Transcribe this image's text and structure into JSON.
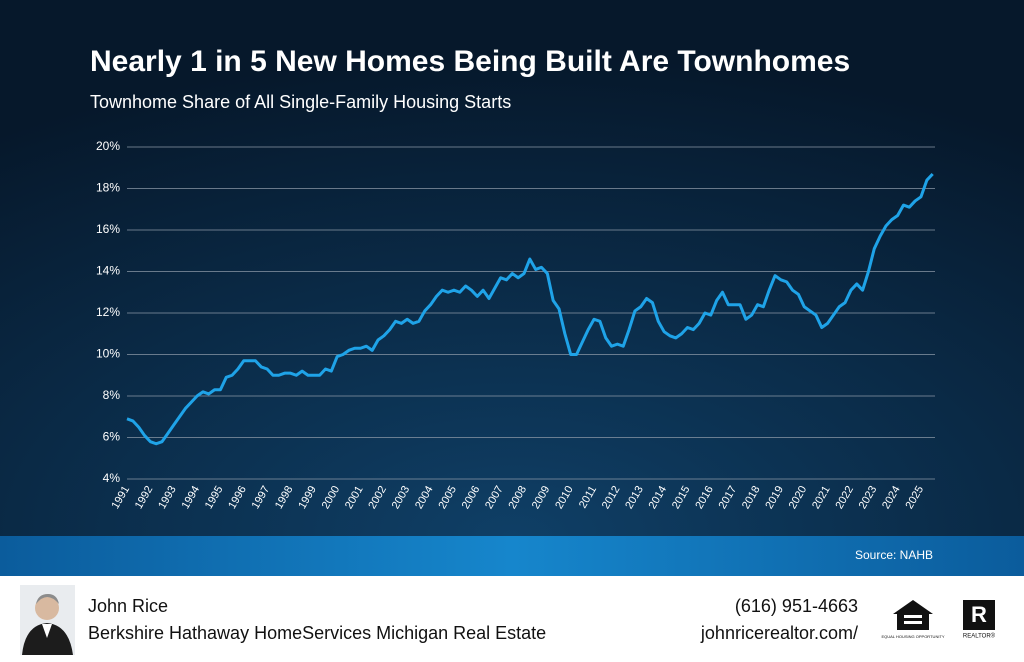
{
  "chart_data": {
    "type": "line",
    "title": "Nearly 1 in 5 New Homes Being Built Are Townhomes",
    "subtitle": "Townhome Share of All Single-Family Housing Starts",
    "source": "Source: NAHB",
    "x": [
      1991,
      1991.25,
      1991.5,
      1991.75,
      1992,
      1992.25,
      1992.5,
      1992.75,
      1993,
      1993.25,
      1993.5,
      1993.75,
      1994,
      1994.25,
      1994.5,
      1994.75,
      1995,
      1995.25,
      1995.5,
      1995.75,
      1996,
      1996.25,
      1996.5,
      1996.75,
      1997,
      1997.25,
      1997.5,
      1997.75,
      1998,
      1998.25,
      1998.5,
      1998.75,
      1999,
      1999.25,
      1999.5,
      1999.75,
      2000,
      2000.25,
      2000.5,
      2000.75,
      2001,
      2001.25,
      2001.5,
      2001.75,
      2002,
      2002.25,
      2002.5,
      2002.75,
      2003,
      2003.25,
      2003.5,
      2003.75,
      2004,
      2004.25,
      2004.5,
      2004.75,
      2005,
      2005.25,
      2005.5,
      2005.75,
      2006,
      2006.25,
      2006.5,
      2006.75,
      2007,
      2007.25,
      2007.5,
      2007.75,
      2008,
      2008.25,
      2008.5,
      2008.75,
      2009,
      2009.25,
      2009.5,
      2009.75,
      2010,
      2010.25,
      2010.5,
      2010.75,
      2011,
      2011.25,
      2011.5,
      2011.75,
      2012,
      2012.25,
      2012.5,
      2012.75,
      2013,
      2013.25,
      2013.5,
      2013.75,
      2014,
      2014.25,
      2014.5,
      2014.75,
      2015,
      2015.25,
      2015.5,
      2015.75,
      2016,
      2016.25,
      2016.5,
      2016.75,
      2017,
      2017.25,
      2017.5,
      2017.75,
      2018,
      2018.25,
      2018.5,
      2018.75,
      2019,
      2019.25,
      2019.5,
      2019.75,
      2020,
      2020.25,
      2020.5,
      2020.75,
      2021,
      2021.25,
      2021.5,
      2021.75,
      2022,
      2022.25,
      2022.5,
      2022.75,
      2023,
      2023.25,
      2023.5,
      2023.75,
      2024,
      2024.25,
      2024.5,
      2024.75,
      2025,
      2025.25,
      2025.5
    ],
    "series": [
      {
        "name": "Townhome share",
        "color": "#1fa3e8",
        "values": [
          6.9,
          6.8,
          6.5,
          6.1,
          5.8,
          5.7,
          5.8,
          6.2,
          6.6,
          7.0,
          7.4,
          7.7,
          8.0,
          8.2,
          8.1,
          8.3,
          8.3,
          8.9,
          9.0,
          9.3,
          9.7,
          9.7,
          9.7,
          9.4,
          9.3,
          9.0,
          9.0,
          9.1,
          9.1,
          9.0,
          9.2,
          9.0,
          9.0,
          9.0,
          9.3,
          9.2,
          9.9,
          10.0,
          10.2,
          10.3,
          10.3,
          10.4,
          10.2,
          10.7,
          10.9,
          11.2,
          11.6,
          11.5,
          11.7,
          11.5,
          11.6,
          12.1,
          12.4,
          12.8,
          13.1,
          13.0,
          13.1,
          13.0,
          13.3,
          13.1,
          12.8,
          13.1,
          12.7,
          13.2,
          13.7,
          13.6,
          13.9,
          13.7,
          13.9,
          14.6,
          14.1,
          14.2,
          13.9,
          12.6,
          12.2,
          11.0,
          10.0,
          10.0,
          10.6,
          11.2,
          11.7,
          11.6,
          10.8,
          10.4,
          10.5,
          10.4,
          11.2,
          12.1,
          12.3,
          12.7,
          12.5,
          11.6,
          11.1,
          10.9,
          10.8,
          11.0,
          11.3,
          11.2,
          11.5,
          12.0,
          11.9,
          12.6,
          13.0,
          12.4,
          12.4,
          12.4,
          11.7,
          11.9,
          12.4,
          12.3,
          13.1,
          13.8,
          13.6,
          13.5,
          13.1,
          12.9,
          12.3,
          12.1,
          11.9,
          11.3,
          11.5,
          11.9,
          12.3,
          12.5,
          13.1,
          13.4,
          13.1,
          14.0,
          15.1,
          15.7,
          16.2,
          16.5,
          16.7,
          17.2,
          17.1,
          17.4,
          17.6,
          18.4,
          18.7
        ]
      }
    ],
    "xlim": [
      1991,
      2025.6
    ],
    "xticks": [
      1991,
      1992,
      1993,
      1994,
      1995,
      1996,
      1997,
      1998,
      1999,
      2000,
      2001,
      2002,
      2003,
      2004,
      2005,
      2006,
      2007,
      2008,
      2009,
      2010,
      2011,
      2012,
      2013,
      2014,
      2015,
      2016,
      2017,
      2018,
      2019,
      2020,
      2021,
      2022,
      2023,
      2024,
      2025
    ],
    "ylim": [
      4,
      20
    ],
    "yticks": [
      {
        "value": 4,
        "label": "4%"
      },
      {
        "value": 6,
        "label": "6%"
      },
      {
        "value": 8,
        "label": "8%"
      },
      {
        "value": 10,
        "label": "10%"
      },
      {
        "value": 12,
        "label": "12%"
      },
      {
        "value": 14,
        "label": "14%"
      },
      {
        "value": 16,
        "label": "16%"
      },
      {
        "value": 18,
        "label": "18%"
      },
      {
        "value": 20,
        "label": "20%"
      }
    ],
    "grid": true
  },
  "footer": {
    "name": "John Rice",
    "company": "Berkshire Hathaway HomeServices Michigan Real Estate",
    "phone": "(616) 951-4663",
    "website": "johnricerealtor.com/",
    "equal_housing_label": "EQUAL HOUSING OPPORTUNITY",
    "realtor_mark": "R",
    "realtor_label": "REALTOR®"
  }
}
